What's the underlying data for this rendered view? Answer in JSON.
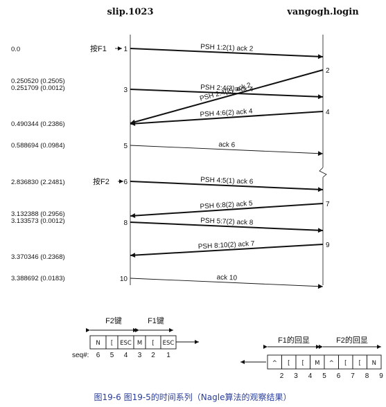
{
  "hosts": {
    "left": "slip.1023",
    "right": "vangogh.login"
  },
  "timestamps": [
    "0.0",
    "0.250520 (0.2505)",
    "0.251709 (0.0012)",
    "0.490344 (0.2386)",
    "0.588694 (0.0984)",
    "2.836830 (2.2481)",
    "3.132388 (0.2956)",
    "3.133573 (0.0012)",
    "3.370346 (0.2368)",
    "3.388692 (0.0183)"
  ],
  "segments": [
    {
      "num": "1",
      "dir": "right",
      "label": "PSH  1:2(1) ack 2",
      "bold": true
    },
    {
      "num": "2",
      "dir": "left",
      "label": "PSH  2:4(2) ack 2",
      "bold": true
    },
    {
      "num": "3",
      "dir": "right",
      "label": "PSH  2:4(2) ack 4",
      "bold": true
    },
    {
      "num": "4",
      "dir": "left",
      "label": "PSH  4:6(2) ack 4",
      "bold": true
    },
    {
      "num": "5",
      "dir": "right",
      "label": "ack 6",
      "bold": false
    },
    {
      "num": "6",
      "dir": "right",
      "label": "PSH  4:5(1) ack 6",
      "bold": true
    },
    {
      "num": "7",
      "dir": "left",
      "label": "PSH  6:8(2) ack 5",
      "bold": true
    },
    {
      "num": "8",
      "dir": "right",
      "label": "PSH  5:7(2) ack 8",
      "bold": true
    },
    {
      "num": "9",
      "dir": "left",
      "label": "PSH  8:10(2) ack 7",
      "bold": true
    },
    {
      "num": "10",
      "dir": "right",
      "label": "ack 10",
      "bold": false
    }
  ],
  "key_presses": {
    "f1": "按F1",
    "f2": "按F2"
  },
  "send_buffer": {
    "group_labels": [
      "F2键",
      "F1键"
    ],
    "cells": [
      "N",
      "[",
      "ESC",
      "M",
      "[",
      "ESC"
    ],
    "seq_label": "seq#:",
    "seq": [
      "6",
      "5",
      "4",
      "3",
      "2",
      "1"
    ]
  },
  "echo_buffer": {
    "group_labels": [
      "F1的回显",
      "F2的回显"
    ],
    "cells": [
      "^",
      "[",
      "[",
      "M",
      "^",
      "[",
      "[",
      "N"
    ],
    "seq": [
      "2",
      "3",
      "4",
      "5",
      "6",
      "7",
      "8",
      "9"
    ]
  },
  "caption": "图19-6  图19-5的时间系列（Nagle算法的观察结果）"
}
